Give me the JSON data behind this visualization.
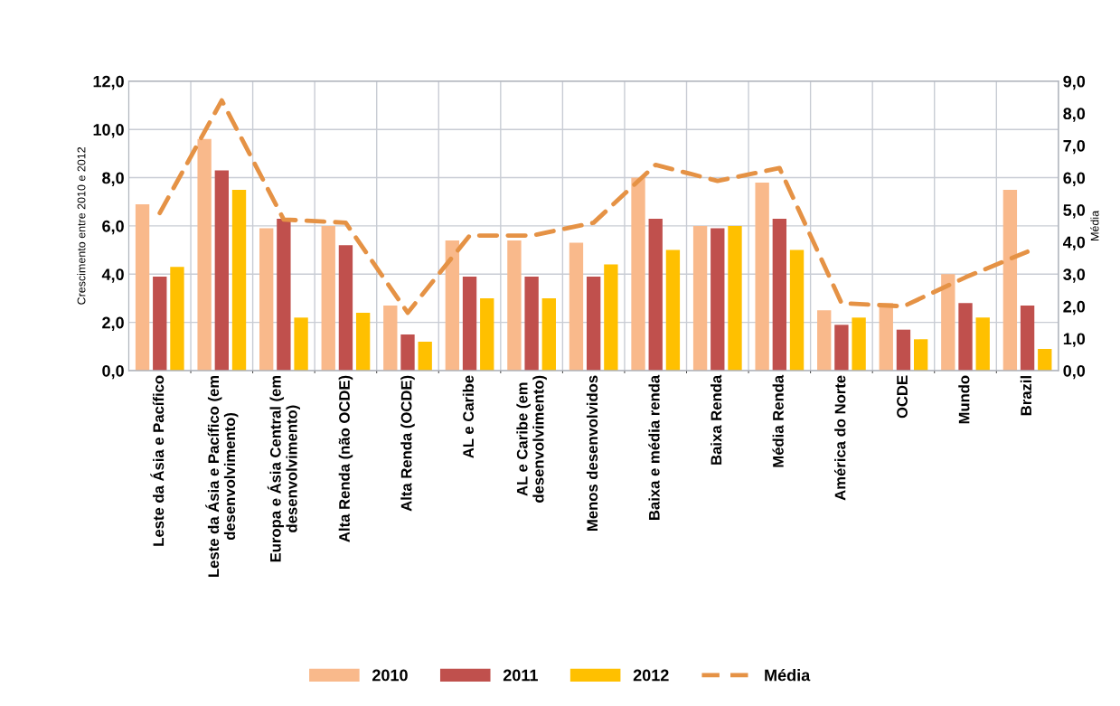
{
  "chart_data": {
    "type": "bar",
    "ylabel": "Crescimento entre 2010 e 2012",
    "y2label": "Média",
    "categories": [
      "Leste da Ásia e Pacífico",
      "Leste da Ásia e Pacífico (em\ndesenvolvimento)",
      "Europa e Ásia Central (em\ndesenvolvimento)",
      "Alta Renda (não OCDE)",
      "Alta Renda (OCDE)",
      "AL e Caribe",
      "AL e Caribe (em\ndesenvolvimento)",
      "Menos desenvolvidos",
      "Baixa e média renda",
      "Baixa Renda",
      "Média Renda",
      "América do Norte",
      "OCDE",
      "Mundo",
      "Brazil"
    ],
    "series": [
      {
        "name": "2010",
        "color": "#f9b98b",
        "values": [
          6.9,
          9.6,
          5.9,
          6.0,
          2.7,
          5.4,
          5.4,
          5.3,
          8.0,
          6.0,
          7.8,
          2.5,
          2.8,
          4.0,
          7.5
        ]
      },
      {
        "name": "2011",
        "color": "#c0504d",
        "values": [
          3.9,
          8.3,
          6.3,
          5.2,
          1.5,
          3.9,
          3.9,
          3.9,
          6.3,
          5.9,
          6.3,
          1.9,
          1.7,
          2.8,
          2.7
        ]
      },
      {
        "name": "2012",
        "color": "#ffc000",
        "values": [
          4.3,
          7.5,
          2.2,
          2.4,
          1.2,
          3.0,
          3.0,
          4.4,
          5.0,
          6.0,
          5.0,
          2.2,
          1.3,
          2.2,
          0.9
        ]
      },
      {
        "name": "Média",
        "color": "#e59245",
        "type": "line",
        "axis": "y2",
        "line_style": "dashed",
        "values": [
          4.9,
          8.4,
          4.7,
          4.6,
          1.8,
          4.2,
          4.2,
          4.6,
          6.4,
          5.9,
          6.3,
          2.1,
          2.0,
          2.9,
          3.7
        ]
      }
    ],
    "ylim": [
      0,
      12
    ],
    "yticks": [
      {
        "value": 0,
        "label": "0,0"
      },
      {
        "value": 2,
        "label": "2,0"
      },
      {
        "value": 4,
        "label": "4,0"
      },
      {
        "value": 6,
        "label": "6,0"
      },
      {
        "value": 8,
        "label": "8,0"
      },
      {
        "value": 10,
        "label": "10,0"
      },
      {
        "value": 12,
        "label": "12,0"
      }
    ],
    "y2lim": [
      0,
      9
    ],
    "y2ticks": [
      {
        "value": 0,
        "label": "0,0"
      },
      {
        "value": 1,
        "label": "1,0"
      },
      {
        "value": 2,
        "label": "2,0"
      },
      {
        "value": 3,
        "label": "3,0"
      },
      {
        "value": 4,
        "label": "4,0"
      },
      {
        "value": 5,
        "label": "5,0"
      },
      {
        "value": 6,
        "label": "6,0"
      },
      {
        "value": 7,
        "label": "7,0"
      },
      {
        "value": 8,
        "label": "8,0"
      },
      {
        "value": 9,
        "label": "9,0"
      }
    ],
    "grid": true,
    "legend": "bottom"
  }
}
